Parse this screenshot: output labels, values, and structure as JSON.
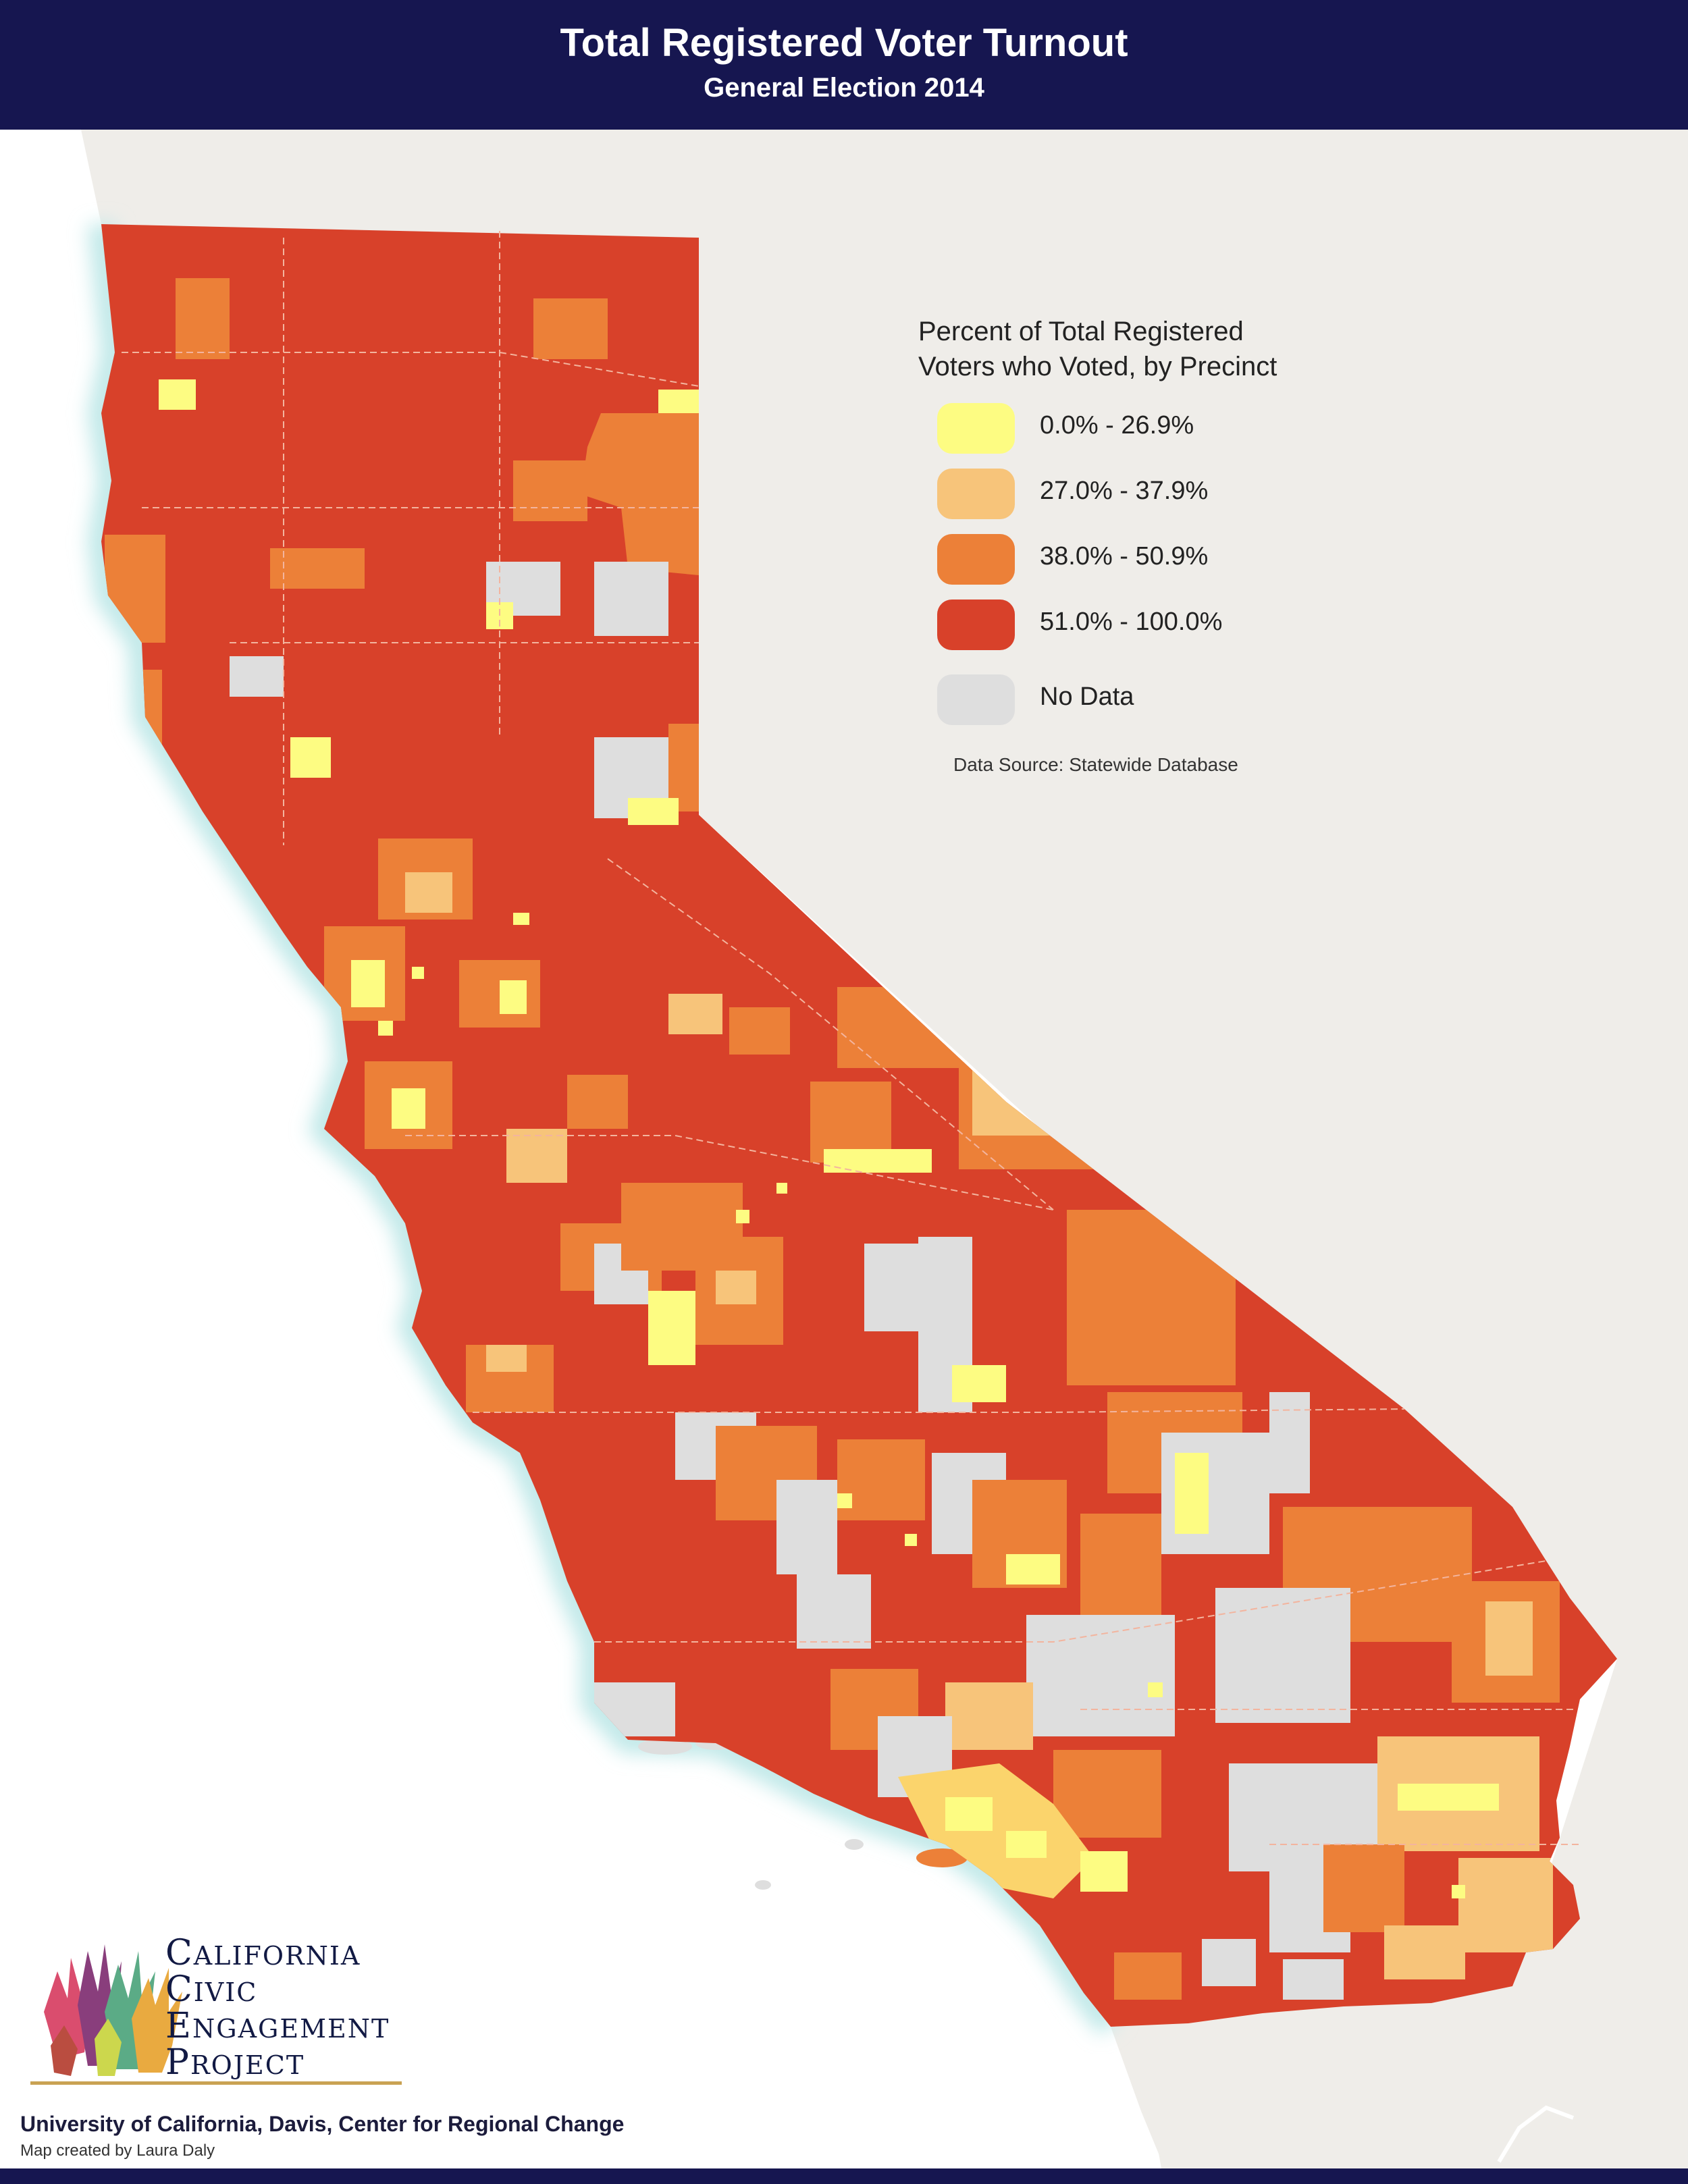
{
  "header": {
    "title": "Total Registered Voter Turnout",
    "subtitle": "General Election 2014"
  },
  "legend": {
    "title_line1": "Percent of Total Registered",
    "title_line2": "Voters who Voted, by Precinct",
    "items": [
      {
        "label": "0.0% - 26.9%",
        "color": "#fdfc82"
      },
      {
        "label": "27.0% - 37.9%",
        "color": "#f7c47a"
      },
      {
        "label": "38.0% - 50.9%",
        "color": "#ec8038"
      },
      {
        "label": "51.0% - 100.0%",
        "color": "#d8412a"
      },
      {
        "label": "No Data",
        "color": "#dedede"
      }
    ],
    "source": "Data Source: Statewide Database"
  },
  "map": {
    "land_color": "#efede9",
    "water_color": "#ffffff",
    "coast_glow_color": "#bfe8e8",
    "state_base_color": "#d8412a"
  },
  "logo": {
    "line1_cap": "C",
    "line1_rest": "ALIFORNIA",
    "line2_cap": "C",
    "line2_rest": "IVIC",
    "line3_cap": "E",
    "line3_rest": "NGAGEMENT",
    "line4_cap": "P",
    "line4_rest": "ROJECT"
  },
  "credits": {
    "line1": "University of California, Davis, Center for Regional Change",
    "line2": "Map created by Laura Daly"
  }
}
